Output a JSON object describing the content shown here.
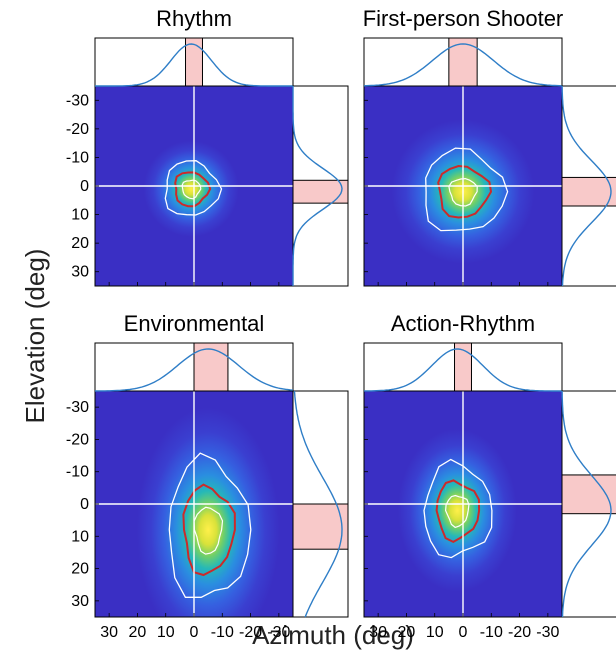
{
  "figure": {
    "xlabel": "Azimuth (deg)",
    "ylabel": "Elevation (deg)"
  },
  "colors": {
    "background_field": "#3a2fc4",
    "marginal_line": "#2f7ec7",
    "band_fill": "#f8c9c9",
    "contour_inner": "#cc2a2a",
    "contour_outer": "#ffffff",
    "crosshair": "#ffffff"
  },
  "chart_data": [
    {
      "type": "heatmap",
      "title": "Rhythm",
      "x_direction": "reversed",
      "xlim": [
        35,
        -35
      ],
      "ylim": [
        -35,
        35
      ],
      "x_ticks": [
        30,
        20,
        10,
        0,
        -10,
        -20,
        -30
      ],
      "y_ticks": [
        -30,
        -20,
        -10,
        0,
        10,
        20,
        30
      ],
      "x_tick_labels_shown": false,
      "y_tick_labels_shown": true,
      "peak": {
        "azimuth": 1,
        "elevation": 1
      },
      "spread": {
        "azimuth": 4,
        "elevation": 4
      },
      "azimuth_band": [
        -3,
        3
      ],
      "elevation_band": [
        -2,
        6
      ]
    },
    {
      "type": "heatmap",
      "title": "First-person Shooter",
      "x_direction": "reversed",
      "xlim": [
        35,
        -35
      ],
      "ylim": [
        -35,
        35
      ],
      "x_ticks": [
        30,
        20,
        10,
        0,
        -10,
        -20,
        -30
      ],
      "y_ticks": [
        -30,
        -20,
        -10,
        0,
        10,
        20,
        30
      ],
      "x_tick_labels_shown": false,
      "y_tick_labels_shown": false,
      "peak": {
        "azimuth": 0,
        "elevation": 2
      },
      "spread": {
        "azimuth": 6,
        "elevation": 6
      },
      "azimuth_band": [
        -5,
        5
      ],
      "elevation_band": [
        -3,
        7
      ]
    },
    {
      "type": "heatmap",
      "title": "Environmental",
      "x_direction": "reversed",
      "xlim": [
        35,
        -35
      ],
      "ylim": [
        -35,
        35
      ],
      "x_ticks": [
        30,
        20,
        10,
        0,
        -10,
        -20,
        -30
      ],
      "y_ticks": [
        -30,
        -20,
        -10,
        0,
        10,
        20,
        30
      ],
      "x_tick_labels_shown": true,
      "y_tick_labels_shown": true,
      "peak": {
        "azimuth": -5,
        "elevation": 8
      },
      "spread": {
        "azimuth": 6,
        "elevation": 9
      },
      "azimuth_band": [
        -12,
        0
      ],
      "elevation_band": [
        0,
        14
      ]
    },
    {
      "type": "heatmap",
      "title": "Action-Rhythm",
      "x_direction": "reversed",
      "xlim": [
        35,
        -35
      ],
      "ylim": [
        -35,
        35
      ],
      "x_ticks": [
        30,
        20,
        10,
        0,
        -10,
        -20,
        -30
      ],
      "y_ticks": [
        -30,
        -20,
        -10,
        0,
        10,
        20,
        30
      ],
      "x_tick_labels_shown": true,
      "y_tick_labels_shown": false,
      "peak": {
        "azimuth": 2,
        "elevation": 2
      },
      "spread": {
        "azimuth": 5,
        "elevation": 6
      },
      "azimuth_band": [
        -3,
        3
      ],
      "elevation_band": [
        -9,
        3
      ]
    }
  ]
}
